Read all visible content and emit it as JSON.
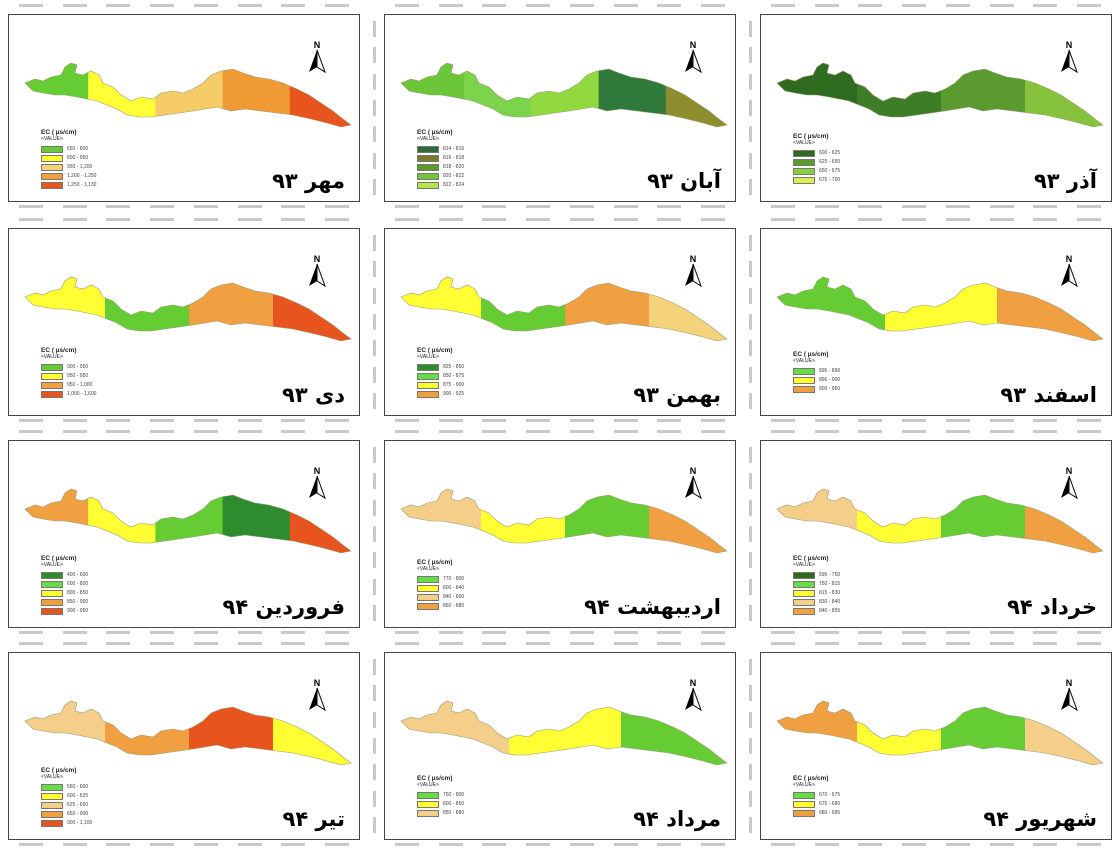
{
  "figure": {
    "legend_title": "EC ( µs/cm)",
    "legend_subtitle": "<VALUE>",
    "north_arrow_label": "N"
  },
  "panels": [
    {
      "month_label": "مهر ۹۳",
      "colors": [
        "#66cc33",
        "#ffff33",
        "#f5cc66",
        "#f09a33",
        "#e8541e"
      ],
      "legend": [
        {
          "label": "650 - 800",
          "color": "#66cc33"
        },
        {
          "label": "800 - 950",
          "color": "#ffff33"
        },
        {
          "label": "950 - 1,200",
          "color": "#f5d37a"
        },
        {
          "label": "1,200 - 1,250",
          "color": "#f0a040"
        },
        {
          "label": "1,250 - 1,130",
          "color": "#e8541e"
        }
      ]
    },
    {
      "month_label": "آبان ۹۳",
      "colors": [
        "#6cc63a",
        "#7cd44a",
        "#92d93f",
        "#2f7a3a",
        "#8e8e2e"
      ],
      "legend": [
        {
          "label": "814 - 816",
          "color": "#2f6b3a"
        },
        {
          "label": "816 - 818",
          "color": "#7a7a2a"
        },
        {
          "label": "818 - 820",
          "color": "#5a9a2a"
        },
        {
          "label": "820 - 822",
          "color": "#77c23c"
        },
        {
          "label": "822 - 824",
          "color": "#b4e64a"
        }
      ]
    },
    {
      "month_label": "آذر ۹۳",
      "colors": [
        "#2e6b1f",
        "#3e7d27",
        "#5a9a2e",
        "#86c23c"
      ],
      "legend": [
        {
          "label": "600 - 625",
          "color": "#2e6b1f"
        },
        {
          "label": "625 - 650",
          "color": "#5a9a2e"
        },
        {
          "label": "650 - 675",
          "color": "#8ccf3f"
        },
        {
          "label": "675 - 700",
          "color": "#ddee55"
        }
      ]
    },
    {
      "month_label": "دی ۹۳",
      "colors": [
        "#ffff33",
        "#66cc33",
        "#f0a040",
        "#e8541e"
      ],
      "legend": [
        {
          "label": "900 - 950",
          "color": "#66cc33"
        },
        {
          "label": "950 - 950",
          "color": "#ffff33"
        },
        {
          "label": "950 - 1,000",
          "color": "#f0a040"
        },
        {
          "label": "1,000 - 1,600",
          "color": "#e8541e"
        }
      ]
    },
    {
      "month_label": "بهمن ۹۳",
      "colors": [
        "#ffff33",
        "#66cc33",
        "#f0a040",
        "#f5d37a"
      ],
      "legend": [
        {
          "label": "825 - 850",
          "color": "#2e8b2e"
        },
        {
          "label": "850 - 875",
          "color": "#66dd44"
        },
        {
          "label": "875 - 900",
          "color": "#ffff33"
        },
        {
          "label": "900 - 925",
          "color": "#f0a040"
        }
      ]
    },
    {
      "month_label": "اسفند ۹۳",
      "colors": [
        "#66cc33",
        "#ffff33",
        "#f0a040"
      ],
      "legend": [
        {
          "label": "895 - 896",
          "color": "#66dd44"
        },
        {
          "label": "896 - 900",
          "color": "#ffff33"
        },
        {
          "label": "900 - 950",
          "color": "#f0a040"
        }
      ]
    },
    {
      "month_label": "فروردین ۹۴",
      "colors": [
        "#f0a040",
        "#ffff33",
        "#66cc33",
        "#2e8b2e",
        "#e8541e"
      ],
      "legend": [
        {
          "label": "400 - 600",
          "color": "#2e8b2e"
        },
        {
          "label": "600 - 800",
          "color": "#66dd44"
        },
        {
          "label": "800 - 850",
          "color": "#ffff33"
        },
        {
          "label": "850 - 900",
          "color": "#f0a040"
        },
        {
          "label": "900 - 950",
          "color": "#e8541e"
        }
      ]
    },
    {
      "month_label": "اردیبهشت ۹۴",
      "colors": [
        "#f5cf8a",
        "#ffff33",
        "#66cc33",
        "#f0a040"
      ],
      "legend": [
        {
          "label": "770 - 800",
          "color": "#66dd44"
        },
        {
          "label": "800 - 840",
          "color": "#ffff33"
        },
        {
          "label": "840 - 860",
          "color": "#f5cf8a"
        },
        {
          "label": "860 - 880",
          "color": "#f0a040"
        }
      ]
    },
    {
      "month_label": "خرداد ۹۴",
      "colors": [
        "#f5cf8a",
        "#ffff33",
        "#66cc33",
        "#f0a040"
      ],
      "legend": [
        {
          "label": "595 - 750",
          "color": "#2e6b1f"
        },
        {
          "label": "750 - 815",
          "color": "#66dd44"
        },
        {
          "label": "815 - 830",
          "color": "#ffff33"
        },
        {
          "label": "830 - 840",
          "color": "#f5cf8a"
        },
        {
          "label": "840 - 855",
          "color": "#f0a040"
        }
      ]
    },
    {
      "month_label": "تیر ۹۴",
      "colors": [
        "#f5cf8a",
        "#f0a040",
        "#e8541e",
        "#ffff33"
      ],
      "legend": [
        {
          "label": "560 - 600",
          "color": "#66dd44"
        },
        {
          "label": "600 - 625",
          "color": "#ffff33"
        },
        {
          "label": "625 - 650",
          "color": "#f5cf8a"
        },
        {
          "label": "650 - 900",
          "color": "#f0a040"
        },
        {
          "label": "900 - 1,100",
          "color": "#e8541e"
        }
      ]
    },
    {
      "month_label": "مرداد ۹۴",
      "colors": [
        "#f5cf8a",
        "#ffff33",
        "#66cc33"
      ],
      "legend": [
        {
          "label": "750 - 800",
          "color": "#66dd44"
        },
        {
          "label": "800 - 850",
          "color": "#ffff33"
        },
        {
          "label": "850 - 880",
          "color": "#f5cf8a"
        }
      ]
    },
    {
      "month_label": "شهریور ۹۴",
      "colors": [
        "#f0a040",
        "#ffff33",
        "#66cc33",
        "#f5cf8a"
      ],
      "legend": [
        {
          "label": "670 - 675",
          "color": "#66dd44"
        },
        {
          "label": "675 - 680",
          "color": "#ffff33"
        },
        {
          "label": "680 - 685",
          "color": "#f0a040"
        }
      ]
    }
  ]
}
